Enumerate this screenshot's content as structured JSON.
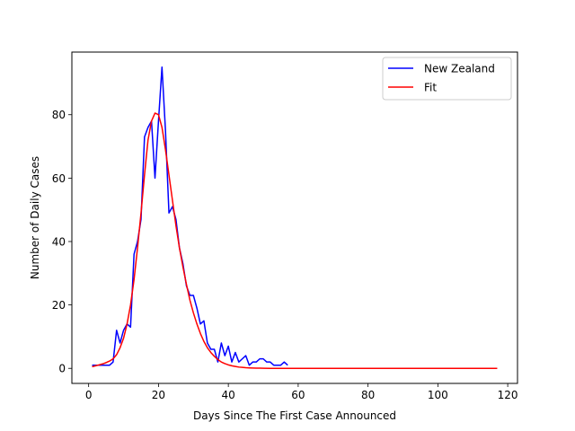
{
  "chart_data": {
    "type": "line",
    "title": "",
    "xlabel": "Days Since The First Case Announced",
    "ylabel": "Number of Daily Cases",
    "xlim": [
      -4.8,
      122.8
    ],
    "ylim": [
      -4.75,
      99.75
    ],
    "xticks": [
      0,
      20,
      40,
      60,
      80,
      100,
      120
    ],
    "yticks": [
      0,
      20,
      40,
      60,
      80
    ],
    "grid": false,
    "legend_position": "top-right",
    "series": [
      {
        "name": "New Zealand",
        "color": "#0000ff",
        "x": [
          1,
          2,
          3,
          4,
          5,
          6,
          7,
          8,
          9,
          10,
          11,
          12,
          13,
          14,
          15,
          16,
          17,
          18,
          19,
          20,
          21,
          22,
          23,
          24,
          25,
          26,
          27,
          28,
          29,
          30,
          31,
          32,
          33,
          34,
          35,
          36,
          37,
          38,
          39,
          40,
          41,
          42,
          43,
          44,
          45,
          46,
          47,
          48,
          49,
          50,
          51,
          52,
          53,
          54,
          55,
          56,
          57
        ],
        "y": [
          1,
          1,
          1,
          1,
          1,
          1,
          2,
          12,
          8,
          12,
          14,
          13,
          36,
          40,
          47,
          73,
          76,
          78,
          60,
          78,
          95,
          75,
          49,
          51,
          47,
          38,
          33,
          26,
          23,
          23,
          19,
          14,
          15,
          8,
          6,
          6,
          2,
          8,
          4,
          7,
          2,
          5,
          2,
          3,
          4,
          1,
          2,
          2,
          3,
          3,
          2,
          2,
          1,
          1,
          1,
          2,
          1
        ]
      },
      {
        "name": "Fit",
        "color": "#ff0000",
        "x": [
          1,
          2,
          3,
          4,
          5,
          6,
          7,
          8,
          9,
          10,
          11,
          12,
          13,
          14,
          15,
          16,
          17,
          18,
          19,
          20,
          21,
          22,
          23,
          24,
          25,
          26,
          27,
          28,
          29,
          30,
          31,
          32,
          33,
          34,
          35,
          36,
          37,
          38,
          39,
          40,
          41,
          42,
          43,
          44,
          45,
          46,
          47,
          48,
          49,
          50,
          52,
          55,
          60,
          70,
          80,
          90,
          100,
          110,
          117
        ],
        "y": [
          0.5,
          0.8,
          1.1,
          1.4,
          1.8,
          2.3,
          3.0,
          4.3,
          6.5,
          9.5,
          14,
          20,
          28,
          38,
          49,
          61,
          72,
          78,
          80.5,
          80,
          76,
          69,
          61,
          53,
          45,
          38,
          32,
          26.5,
          21.5,
          17.5,
          14,
          11,
          8.5,
          6.5,
          5,
          3.8,
          2.8,
          2,
          1.5,
          1.1,
          0.8,
          0.6,
          0.4,
          0.3,
          0.2,
          0.15,
          0.1,
          0.07,
          0.05,
          0.03,
          0.01,
          0,
          0,
          0,
          0,
          0,
          0,
          0,
          0
        ]
      }
    ]
  }
}
